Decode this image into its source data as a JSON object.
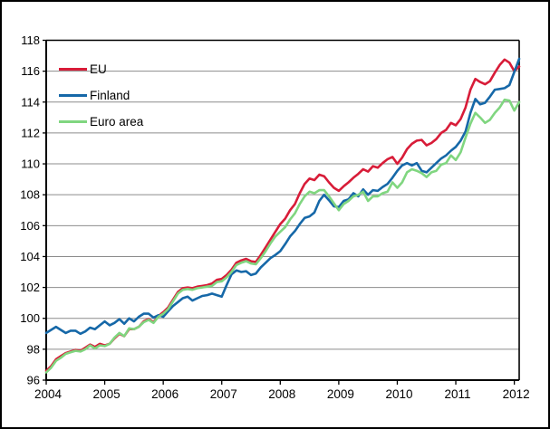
{
  "chart_data": {
    "type": "line",
    "title": "",
    "x_start": "2004-01",
    "x_end": "2012-02",
    "x_tick_labels": [
      "2004",
      "2005",
      "2006",
      "2007",
      "2008",
      "2009",
      "2010",
      "2011",
      "2012"
    ],
    "y_ticks": [
      96,
      98,
      100,
      102,
      104,
      106,
      108,
      110,
      112,
      114,
      116,
      118
    ],
    "ylim": [
      96,
      118
    ],
    "grid": true,
    "legend_position": "top-left-inside",
    "axis_color": "#000000",
    "gridline_color": "#8c8c8c",
    "series": [
      {
        "name": "EU",
        "color": "#d81c38",
        "values": [
          96.6,
          96.9,
          97.35,
          97.55,
          97.75,
          97.85,
          97.95,
          97.9,
          98.1,
          98.3,
          98.15,
          98.35,
          98.25,
          98.35,
          98.7,
          99.0,
          98.85,
          99.3,
          99.3,
          99.45,
          99.8,
          99.95,
          99.75,
          100.15,
          100.4,
          100.7,
          101.2,
          101.7,
          101.95,
          102.0,
          101.95,
          102.05,
          102.1,
          102.15,
          102.25,
          102.5,
          102.55,
          102.8,
          103.15,
          103.6,
          103.75,
          103.85,
          103.7,
          103.65,
          104.1,
          104.6,
          105.1,
          105.6,
          106.1,
          106.45,
          107.0,
          107.4,
          108.1,
          108.7,
          109.05,
          108.95,
          109.3,
          109.2,
          108.8,
          108.45,
          108.25,
          108.55,
          108.8,
          109.1,
          109.35,
          109.65,
          109.5,
          109.85,
          109.75,
          110.05,
          110.3,
          110.45,
          110.0,
          110.4,
          110.95,
          111.3,
          111.5,
          111.55,
          111.2,
          111.35,
          111.6,
          112.0,
          112.2,
          112.65,
          112.5,
          112.9,
          113.65,
          114.8,
          115.5,
          115.3,
          115.15,
          115.35,
          115.9,
          116.4,
          116.75,
          116.55,
          116.0,
          116.3
        ]
      },
      {
        "name": "Finland",
        "color": "#1668a8",
        "values": [
          99.05,
          99.25,
          99.45,
          99.25,
          99.05,
          99.2,
          99.2,
          99.0,
          99.15,
          99.4,
          99.3,
          99.55,
          99.8,
          99.55,
          99.7,
          99.95,
          99.65,
          100.0,
          99.8,
          100.1,
          100.3,
          100.3,
          100.05,
          100.2,
          100.1,
          100.45,
          100.8,
          101.05,
          101.3,
          101.4,
          101.15,
          101.3,
          101.45,
          101.5,
          101.6,
          101.5,
          101.4,
          102.15,
          102.85,
          103.1,
          103.0,
          103.05,
          102.8,
          102.9,
          103.3,
          103.6,
          103.9,
          104.1,
          104.35,
          104.8,
          105.3,
          105.65,
          106.1,
          106.5,
          106.6,
          106.85,
          107.6,
          108.0,
          107.65,
          107.25,
          107.2,
          107.6,
          107.7,
          108.1,
          107.9,
          108.35,
          108.0,
          108.3,
          108.25,
          108.5,
          108.7,
          109.1,
          109.55,
          109.9,
          110.05,
          109.9,
          110.05,
          109.55,
          109.45,
          109.75,
          110.05,
          110.35,
          110.55,
          110.85,
          111.1,
          111.5,
          112.1,
          113.3,
          114.2,
          113.85,
          113.95,
          114.35,
          114.8,
          114.85,
          114.9,
          115.1,
          115.95,
          116.8
        ]
      },
      {
        "name": "Euro area",
        "color": "#80d680",
        "values": [
          96.5,
          96.8,
          97.25,
          97.45,
          97.7,
          97.8,
          97.9,
          97.85,
          98.0,
          98.25,
          98.05,
          98.25,
          98.2,
          98.35,
          98.75,
          99.05,
          98.85,
          99.35,
          99.3,
          99.45,
          99.75,
          99.9,
          99.7,
          100.1,
          100.3,
          100.6,
          101.1,
          101.6,
          101.85,
          101.9,
          101.85,
          101.95,
          102.0,
          102.05,
          102.1,
          102.35,
          102.4,
          102.65,
          103.0,
          103.45,
          103.6,
          103.7,
          103.55,
          103.5,
          103.9,
          104.35,
          104.85,
          105.3,
          105.6,
          105.9,
          106.4,
          106.8,
          107.4,
          107.9,
          108.2,
          108.1,
          108.3,
          108.3,
          107.9,
          107.45,
          107.0,
          107.4,
          107.6,
          107.9,
          108.0,
          108.2,
          107.6,
          107.9,
          107.9,
          108.1,
          108.2,
          108.8,
          108.45,
          108.8,
          109.45,
          109.65,
          109.55,
          109.4,
          109.15,
          109.45,
          109.55,
          109.95,
          110.05,
          110.55,
          110.25,
          110.75,
          111.7,
          112.6,
          113.3,
          113.0,
          112.65,
          112.85,
          113.3,
          113.65,
          114.15,
          114.1,
          113.45,
          114.0
        ]
      }
    ]
  }
}
